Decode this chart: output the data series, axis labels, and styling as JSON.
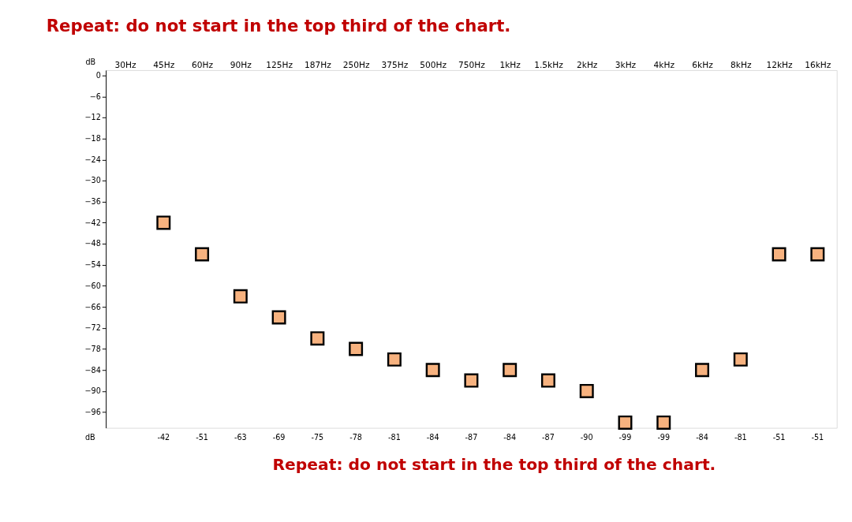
{
  "chart_data": {
    "type": "scatter",
    "title": "Repeat: do not start in the top third of the chart.",
    "categories": [
      "30Hz",
      "45Hz",
      "60Hz",
      "90Hz",
      "125Hz",
      "187Hz",
      "250Hz",
      "375Hz",
      "500Hz",
      "750Hz",
      "1kHz",
      "1.5kHz",
      "2kHz",
      "3kHz",
      "4kHz",
      "6kHz",
      "8kHz",
      "12kHz",
      "16kHz"
    ],
    "series": [
      {
        "color": "#f7b27f",
        "values": [
          null,
          -42,
          -51,
          -63,
          -69,
          -75,
          -78,
          -81,
          -84,
          -87,
          -84,
          -87,
          -90,
          -99,
          -99,
          -84,
          -81,
          -51,
          -51
        ],
        "value_labels": [
          null,
          "-42",
          "-51",
          "-63",
          "-69",
          "-75",
          "-78",
          "-81",
          "-84",
          "-87",
          "-84",
          "-87",
          "-90",
          "-99",
          "-99",
          "-84",
          "-81",
          "-51",
          "-51"
        ]
      }
    ],
    "ylabel": "dB",
    "ylim": [
      -100.5,
      1.5
    ],
    "yticks": [
      0,
      -6,
      -12,
      -18,
      -24,
      -30,
      -36,
      -42,
      -48,
      -54,
      -60,
      -66,
      -72,
      -78,
      -84,
      -90,
      -96
    ],
    "marker": "square",
    "grid": false,
    "annotations": [
      "dB",
      "Repeat: do not start in the top third of the chart."
    ]
  }
}
